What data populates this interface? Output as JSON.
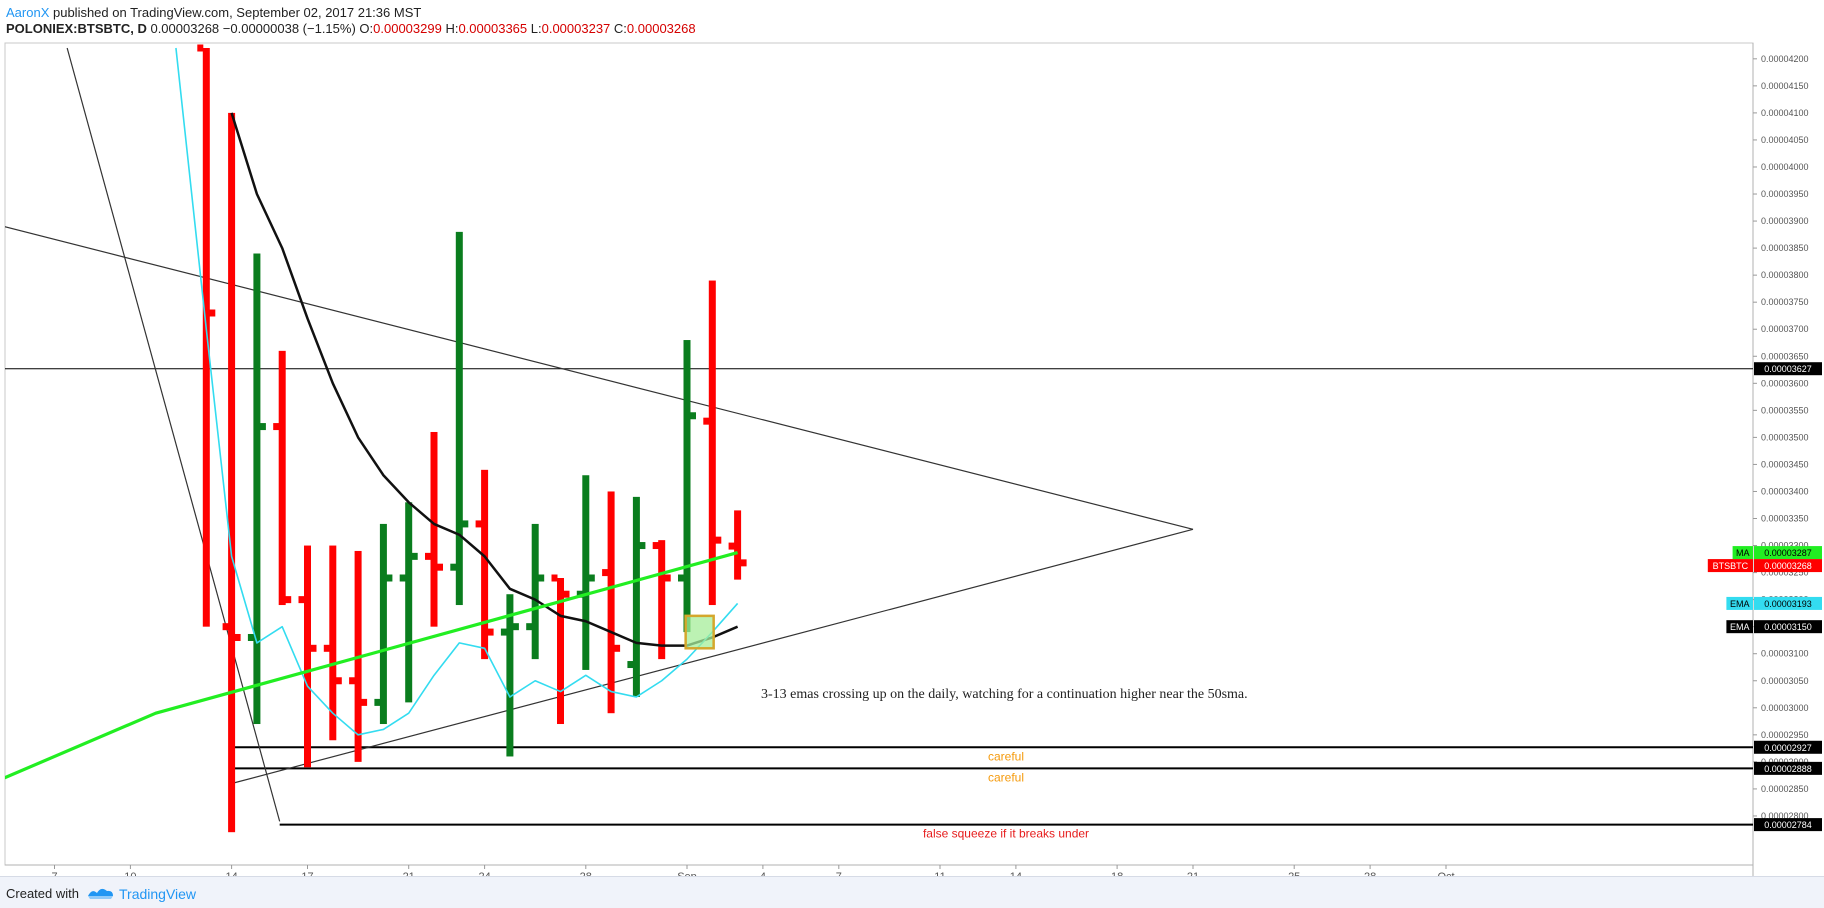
{
  "header": {
    "author": "AaronX",
    "published_text": " published on TradingView.com, September 02, 2017 21:36 MST",
    "symbol": "POLONIEX:BTSBTC, D",
    "last": "0.00003268",
    "change": "−0.00000038 (−1.15%)",
    "o_label": "O:",
    "o_value": "0.00003299",
    "h_label": "H:",
    "h_value": "0.00003365",
    "l_label": "L:",
    "l_value": "0.00003237",
    "c_label": "C:",
    "c_value": "0.00003268"
  },
  "footer": {
    "created_with": "Created with",
    "brand": "TradingView"
  },
  "colors": {
    "up": "#0a7d1e",
    "down": "#ff0000",
    "ma": "#22ee22",
    "ema_fast": "#33dcf0",
    "ema_slow": "#111111",
    "careful": "#f59a0c",
    "squeeze": "#e61c1c",
    "box_fill": "#a6ee9a",
    "box_stroke": "#d4a72c"
  },
  "chart_data": {
    "type": "bar",
    "title": "",
    "ylim": [
      2.75e-05,
      4.22e-05
    ],
    "price_ticks": [
      "0.00004200",
      "0.00004150",
      "0.00004100",
      "0.00004050",
      "0.00004000",
      "0.00003950",
      "0.00003900",
      "0.00003850",
      "0.00003800",
      "0.00003750",
      "0.00003700",
      "0.00003650",
      "0.00003600",
      "0.00003550",
      "0.00003500",
      "0.00003450",
      "0.00003400",
      "0.00003350",
      "0.00003300",
      "0.00003250",
      "0.00003200",
      "0.00003150",
      "0.00003100",
      "0.00003050",
      "0.00003000",
      "0.00002950",
      "0.00002900",
      "0.00002850",
      "0.00002800"
    ],
    "date_ticks": [
      {
        "x": 7,
        "label": "7"
      },
      {
        "x": 10,
        "label": "10"
      },
      {
        "x": 14,
        "label": "14"
      },
      {
        "x": 17,
        "label": "17"
      },
      {
        "x": 21,
        "label": "21"
      },
      {
        "x": 24,
        "label": "24"
      },
      {
        "x": 28,
        "label": "28"
      },
      {
        "x": 32,
        "label": "Sep"
      },
      {
        "x": 35,
        "label": "4"
      },
      {
        "x": 38,
        "label": "7"
      },
      {
        "x": 42,
        "label": "11"
      },
      {
        "x": 45,
        "label": "14"
      },
      {
        "x": 49,
        "label": "18"
      },
      {
        "x": 52,
        "label": "21"
      },
      {
        "x": 56,
        "label": "25"
      },
      {
        "x": 59,
        "label": "28"
      },
      {
        "x": 62,
        "label": "Oct"
      }
    ],
    "bars": [
      {
        "x": 13,
        "o": 4.22e-05,
        "h": 4.22e-05,
        "l": 3.15e-05,
        "c": 3.73e-05
      },
      {
        "x": 14,
        "o": 3.15e-05,
        "h": 4.1e-05,
        "l": 2.77e-05,
        "c": 3.13e-05
      },
      {
        "x": 15,
        "o": 3.13e-05,
        "h": 3.84e-05,
        "l": 2.97e-05,
        "c": 3.52e-05
      },
      {
        "x": 16,
        "o": 3.52e-05,
        "h": 3.66e-05,
        "l": 3.19e-05,
        "c": 3.2e-05
      },
      {
        "x": 17,
        "o": 3.2e-05,
        "h": 3.3e-05,
        "l": 2.89e-05,
        "c": 3.11e-05
      },
      {
        "x": 18,
        "o": 3.11e-05,
        "h": 3.3e-05,
        "l": 2.94e-05,
        "c": 3.05e-05
      },
      {
        "x": 19,
        "o": 3.05e-05,
        "h": 3.29e-05,
        "l": 2.9e-05,
        "c": 3.01e-05
      },
      {
        "x": 20,
        "o": 3.01e-05,
        "h": 3.34e-05,
        "l": 2.97e-05,
        "c": 3.24e-05
      },
      {
        "x": 21,
        "o": 3.24e-05,
        "h": 3.38e-05,
        "l": 3.01e-05,
        "c": 3.28e-05
      },
      {
        "x": 22,
        "o": 3.28e-05,
        "h": 3.51e-05,
        "l": 3.15e-05,
        "c": 3.26e-05
      },
      {
        "x": 23,
        "o": 3.26e-05,
        "h": 3.88e-05,
        "l": 3.19e-05,
        "c": 3.34e-05
      },
      {
        "x": 24,
        "o": 3.34e-05,
        "h": 3.44e-05,
        "l": 3.09e-05,
        "c": 3.14e-05
      },
      {
        "x": 25,
        "o": 3.14e-05,
        "h": 3.21e-05,
        "l": 2.91e-05,
        "c": 3.15e-05
      },
      {
        "x": 26,
        "o": 3.15e-05,
        "h": 3.34e-05,
        "l": 3.09e-05,
        "c": 3.24e-05
      },
      {
        "x": 27,
        "o": 3.24e-05,
        "h": 3.24e-05,
        "l": 2.97e-05,
        "c": 3.21e-05
      },
      {
        "x": 28,
        "o": 3.21e-05,
        "h": 3.43e-05,
        "l": 3.07e-05,
        "c": 3.24e-05
      },
      {
        "x": 29,
        "o": 3.25e-05,
        "h": 3.4e-05,
        "l": 2.99e-05,
        "c": 3.11e-05
      },
      {
        "x": 30,
        "o": 3.08e-05,
        "h": 3.39e-05,
        "l": 3.02e-05,
        "c": 3.3e-05
      },
      {
        "x": 31,
        "o": 3.3e-05,
        "h": 3.31e-05,
        "l": 3.09e-05,
        "c": 3.24e-05
      },
      {
        "x": 32,
        "o": 3.24e-05,
        "h": 3.68e-05,
        "l": 3.14e-05,
        "c": 3.54e-05
      },
      {
        "x": 33,
        "o": 3.53e-05,
        "h": 3.79e-05,
        "l": 3.19e-05,
        "c": 3.31e-05
      },
      {
        "x": 34,
        "o": 3.299e-05,
        "h": 3.365e-05,
        "l": 3.237e-05,
        "c": 3.268e-05
      }
    ],
    "ma_line": [
      {
        "x": 5,
        "y": 2.87e-05
      },
      {
        "x": 11,
        "y": 2.99e-05
      },
      {
        "x": 34,
        "y": 3.287e-05
      }
    ],
    "ema_fast": [
      {
        "x": 11.8,
        "y": 4.22e-05
      },
      {
        "x": 13,
        "y": 3.7e-05
      },
      {
        "x": 14,
        "y": 3.28e-05
      },
      {
        "x": 15,
        "y": 3.12e-05
      },
      {
        "x": 16,
        "y": 3.15e-05
      },
      {
        "x": 17,
        "y": 3.04e-05
      },
      {
        "x": 18,
        "y": 2.99e-05
      },
      {
        "x": 19,
        "y": 2.95e-05
      },
      {
        "x": 20,
        "y": 2.96e-05
      },
      {
        "x": 21,
        "y": 2.99e-05
      },
      {
        "x": 22,
        "y": 3.06e-05
      },
      {
        "x": 23,
        "y": 3.12e-05
      },
      {
        "x": 24,
        "y": 3.11e-05
      },
      {
        "x": 25,
        "y": 3.02e-05
      },
      {
        "x": 26,
        "y": 3.05e-05
      },
      {
        "x": 27,
        "y": 3.03e-05
      },
      {
        "x": 28,
        "y": 3.06e-05
      },
      {
        "x": 29,
        "y": 3.03e-05
      },
      {
        "x": 30,
        "y": 3.02e-05
      },
      {
        "x": 31,
        "y": 3.05e-05
      },
      {
        "x": 32,
        "y": 3.09e-05
      },
      {
        "x": 33,
        "y": 3.14e-05
      },
      {
        "x": 34,
        "y": 3.193e-05
      }
    ],
    "ema_slow": [
      {
        "x": 14,
        "y": 4.1e-05
      },
      {
        "x": 15,
        "y": 3.95e-05
      },
      {
        "x": 16,
        "y": 3.85e-05
      },
      {
        "x": 17,
        "y": 3.72e-05
      },
      {
        "x": 18,
        "y": 3.6e-05
      },
      {
        "x": 19,
        "y": 3.5e-05
      },
      {
        "x": 20,
        "y": 3.43e-05
      },
      {
        "x": 21,
        "y": 3.38e-05
      },
      {
        "x": 22,
        "y": 3.34e-05
      },
      {
        "x": 23,
        "y": 3.32e-05
      },
      {
        "x": 24,
        "y": 3.28e-05
      },
      {
        "x": 25,
        "y": 3.22e-05
      },
      {
        "x": 26,
        "y": 3.2e-05
      },
      {
        "x": 27,
        "y": 3.17e-05
      },
      {
        "x": 28,
        "y": 3.16e-05
      },
      {
        "x": 29,
        "y": 3.14e-05
      },
      {
        "x": 30,
        "y": 3.12e-05
      },
      {
        "x": 31,
        "y": 3.115e-05
      },
      {
        "x": 32,
        "y": 3.115e-05
      },
      {
        "x": 33,
        "y": 3.13e-05
      },
      {
        "x": 34,
        "y": 3.15e-05
      }
    ],
    "trendlines": [
      {
        "from": {
          "x": 5.0,
          "y": 3.89e-05
        },
        "to": {
          "x": 52.0,
          "y": 3.33e-05
        }
      },
      {
        "from": {
          "x": 14.0,
          "y": 2.86e-05
        },
        "to": {
          "x": 52.0,
          "y": 3.33e-05
        }
      },
      {
        "from": {
          "x": 7.5,
          "y": 4.22e-05
        },
        "to": {
          "x": 15.9,
          "y": 2.79e-05
        }
      }
    ],
    "levels": [
      {
        "price": 3.627e-05,
        "label": "0.00003627",
        "from_x": 5,
        "note": ""
      },
      {
        "price": 2.927e-05,
        "label": "0.00002927",
        "from_x": 14,
        "note": "careful"
      },
      {
        "price": 2.888e-05,
        "label": "0.00002888",
        "from_x": 14,
        "note": "careful"
      },
      {
        "price": 2.784e-05,
        "label": "0.00002784",
        "from_x": 15.9,
        "note": "false squeeze if it breaks under"
      }
    ],
    "price_tags": [
      {
        "name": "MA",
        "value": "0.00003287",
        "price": 3.287e-05,
        "bg": "#22ee22",
        "fg": "#000000"
      },
      {
        "name": "BTSBTC",
        "value": "0.00003268",
        "price": 3.268e-05,
        "bg": "#ff0000",
        "fg": "#ffffff"
      },
      {
        "name": "EMA",
        "value": "0.00003193",
        "price": 3.193e-05,
        "bg": "#33dcf0",
        "fg": "#000000"
      },
      {
        "name": "EMA",
        "value": "0.00003150",
        "price": 3.15e-05,
        "bg": "#000000",
        "fg": "#ffffff"
      }
    ],
    "highlight_box": {
      "x": 32.5,
      "y_low": 3.11e-05,
      "y_high": 3.17e-05
    },
    "annotation": "3-13 emas crossing up on the daily, watching for a continuation higher near the 50sma."
  }
}
